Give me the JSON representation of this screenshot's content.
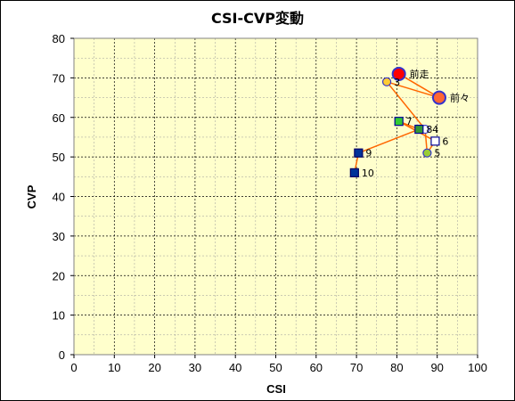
{
  "chart_data": {
    "type": "scatter",
    "title": "CSI-CVP変動",
    "xlabel": "CSI",
    "ylabel": "CVP",
    "xlim": [
      0,
      100
    ],
    "ylim": [
      0,
      80
    ],
    "x_major_step": 10,
    "y_major_step": 10,
    "x_minor_step": 5,
    "y_minor_step": 5,
    "grid": true,
    "plot_background": "#FFFFCC",
    "line_color": "#FF6600",
    "points": [
      {
        "label": "前走",
        "x": 80.5,
        "y": 71,
        "marker": "circle",
        "size": "large",
        "fill": "#FF0000",
        "stroke": "#3333CC"
      },
      {
        "label": "前々",
        "x": 90.5,
        "y": 65,
        "marker": "circle",
        "size": "large",
        "fill": "#FF6633",
        "stroke": "#3333CC"
      },
      {
        "label": "3",
        "x": 77.5,
        "y": 69,
        "marker": "circle",
        "size": "small",
        "fill": "#FFCC33",
        "stroke": "#3333CC"
      },
      {
        "label": "4",
        "x": 87,
        "y": 57,
        "marker": "circle",
        "size": "small",
        "fill": "#FFFFFF",
        "stroke": "#3333CC"
      },
      {
        "label": "5",
        "x": 87.5,
        "y": 51,
        "marker": "circle",
        "size": "small",
        "fill": "#99CC33",
        "stroke": "#3333CC"
      },
      {
        "label": "6",
        "x": 89.5,
        "y": 54,
        "marker": "square",
        "size": "small",
        "fill": "#FFFFFF",
        "stroke": "#000099"
      },
      {
        "label": "7",
        "x": 80.5,
        "y": 59,
        "marker": "square",
        "size": "small",
        "fill": "#33CC33",
        "stroke": "#000099"
      },
      {
        "label": "8",
        "x": 85.5,
        "y": 57,
        "marker": "square",
        "size": "small",
        "fill": "#339933",
        "stroke": "#000099"
      },
      {
        "label": "9",
        "x": 70.5,
        "y": 51,
        "marker": "square",
        "size": "small",
        "fill": "#003399",
        "stroke": "#000066"
      },
      {
        "label": "10",
        "x": 69.5,
        "y": 46,
        "marker": "square",
        "size": "small",
        "fill": "#003399",
        "stroke": "#000066"
      }
    ],
    "connections": [
      [
        "前走",
        "前々"
      ],
      [
        "前々",
        "3"
      ],
      [
        "3",
        "4"
      ],
      [
        "4",
        "5"
      ],
      [
        "5",
        "6"
      ],
      [
        "6",
        "7"
      ],
      [
        "7",
        "8"
      ],
      [
        "8",
        "9"
      ],
      [
        "9",
        "10"
      ]
    ]
  }
}
